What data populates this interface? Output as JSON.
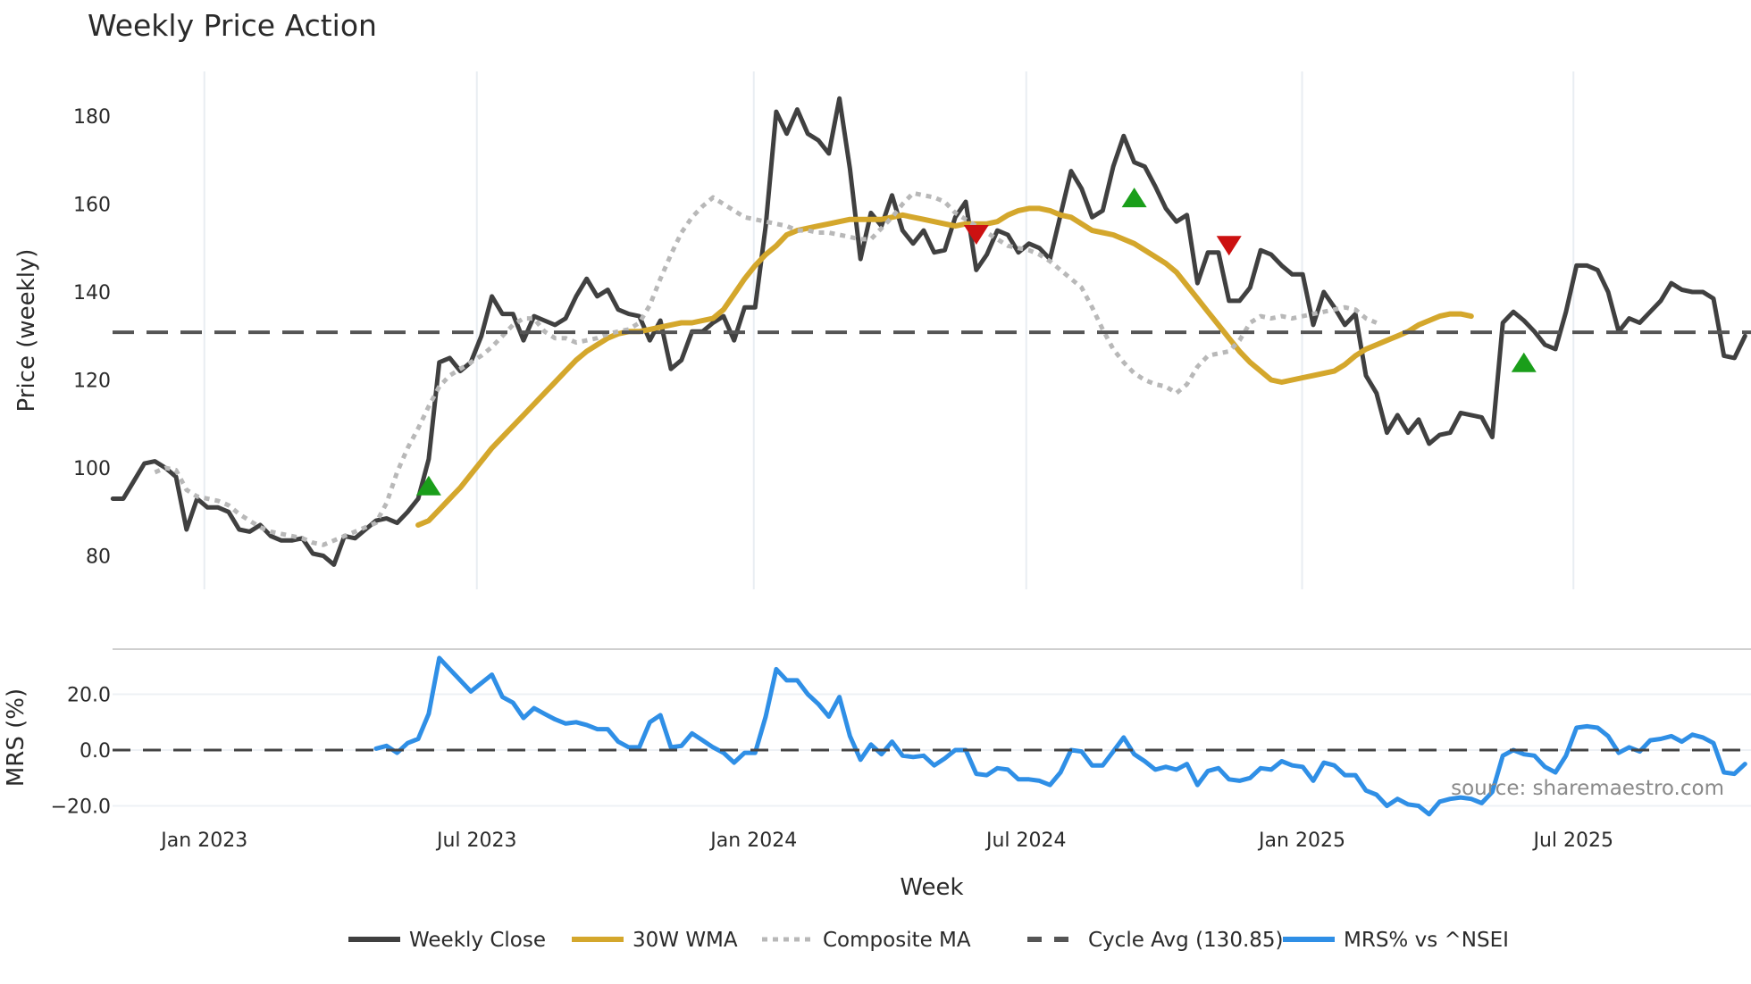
{
  "chart_data": {
    "type": "line",
    "title": "Weekly Price Action",
    "xlabel": "Week",
    "panels": [
      {
        "name": "price",
        "ylabel": "Price (weekly)",
        "yticks": [
          80,
          100,
          120,
          140,
          160,
          180
        ],
        "ylim": [
          72,
          190
        ],
        "grid": "x-only"
      },
      {
        "name": "mrs",
        "ylabel": "MRS (%)",
        "yticks": [
          "-20.0",
          "0.0",
          "20.0"
        ],
        "ylim": [
          -26,
          36
        ]
      }
    ],
    "x_ticks": [
      "Jan 2023",
      "Jul 2023",
      "Jan 2024",
      "Jul 2024",
      "Jan 2025",
      "Jul 2025"
    ],
    "x_start": "2022-11-14",
    "x_step_weeks": 1,
    "series": [
      {
        "name": "Weekly Close",
        "color": "#404040",
        "style": "solid",
        "start_index": 0,
        "values": [
          93,
          93,
          97,
          101,
          101.5,
          100,
          98,
          86,
          93,
          91,
          91,
          90,
          86,
          85.5,
          87,
          84.5,
          83.5,
          83.5,
          84,
          80.5,
          80,
          78,
          84.5,
          84,
          86,
          88,
          88.5,
          87.5,
          90,
          93,
          102,
          124,
          125,
          122,
          124,
          130,
          139,
          135,
          135,
          129,
          134.5,
          133.5,
          132.5,
          134,
          139,
          143,
          139,
          140.5,
          136,
          135,
          134.5,
          129,
          133.5,
          122.5,
          124.5,
          131,
          131,
          133,
          134.5,
          129,
          136.5,
          136.5,
          155,
          181,
          176,
          181.5,
          176,
          174.5,
          171.5,
          184,
          168,
          147.5,
          158,
          155,
          162,
          154,
          151,
          154,
          149,
          149.5,
          157,
          160.5,
          145,
          148.5,
          154,
          153,
          149,
          151,
          150,
          147.5,
          157.5,
          167.5,
          163.5,
          157,
          158.5,
          168.5,
          175.5,
          169.5,
          168.5,
          164,
          159,
          156,
          157.5,
          142,
          149,
          149,
          138,
          138,
          141,
          149.5,
          148.5,
          146,
          144,
          144,
          132.5,
          140,
          136.5,
          132.5,
          135,
          121,
          117,
          108,
          112,
          108,
          111,
          105.5,
          107.5,
          108,
          112.5,
          112,
          111.5,
          107,
          133,
          135.5,
          133.5,
          131,
          128,
          127,
          135.5,
          146,
          146,
          145,
          140,
          131,
          134,
          133,
          135.5,
          138,
          142,
          140.5,
          140,
          140,
          138.5,
          125.5,
          125,
          130
        ]
      },
      {
        "name": "30W WMA",
        "color": "#d4a72c",
        "style": "solid",
        "start_index": 29,
        "values": [
          87,
          88,
          90.5,
          93,
          95.5,
          98.5,
          101.5,
          104.5,
          107,
          109.5,
          112,
          114.5,
          117,
          119.5,
          122,
          124.5,
          126.5,
          128,
          129.5,
          130.5,
          131,
          131,
          131.5,
          132,
          132.5,
          133,
          133,
          133.5,
          134,
          136,
          139.5,
          143,
          146,
          148.5,
          150.5,
          153,
          154,
          154.5,
          155,
          155.5,
          156,
          156.5,
          156.5,
          156.5,
          156.5,
          157,
          157.5,
          157,
          156.5,
          156,
          155.5,
          155,
          155.5,
          155.5,
          155.5,
          156,
          157.5,
          158.5,
          159,
          159,
          158.5,
          157.5,
          157,
          155.5,
          154,
          153.5,
          153,
          152,
          151,
          149.5,
          148,
          146.5,
          144.5,
          141.5,
          138.5,
          135.5,
          132.5,
          129.5,
          126.5,
          124,
          122,
          120,
          119.5,
          120,
          120.5,
          121,
          121.5,
          122,
          123.5,
          125.5,
          127,
          128,
          129,
          130,
          131,
          132.5,
          133.5,
          134.5,
          135,
          135,
          134.5
        ]
      },
      {
        "name": "Composite MA",
        "color": "#b8b8b8",
        "style": "dotted",
        "start_index": 4,
        "values": [
          99,
          100,
          99.5,
          95,
          93.5,
          93,
          92.5,
          91.5,
          89.5,
          88,
          86.5,
          85.5,
          85,
          84.5,
          84,
          83,
          82.5,
          83.5,
          84.5,
          85.5,
          86.5,
          87.5,
          92,
          99,
          104.5,
          109,
          114,
          118.5,
          121,
          122.5,
          124,
          125.5,
          127.5,
          130,
          132.5,
          134,
          134,
          131,
          129.5,
          129.5,
          128.5,
          129,
          129.5,
          130.5,
          131,
          131.5,
          133,
          137,
          143,
          148.5,
          153.5,
          157,
          159.5,
          161.5,
          160,
          158.5,
          157,
          156.5,
          156,
          155.5,
          155,
          154,
          154,
          153.5,
          153.5,
          153,
          152.5,
          152,
          152,
          154.5,
          157,
          160,
          162.5,
          162,
          161.5,
          160.5,
          158,
          156.5,
          155,
          153.5,
          152,
          150.5,
          150,
          149.5,
          148.5,
          147,
          145,
          143,
          141,
          136.5,
          131.5,
          127,
          124,
          121.5,
          120,
          119,
          118.5,
          117,
          119,
          123,
          125.5,
          126,
          126.5,
          129,
          133,
          134.5,
          134,
          134.5,
          134,
          134.5,
          135,
          135.5,
          136,
          136.5,
          136,
          134,
          133
        ]
      },
      {
        "name": "Cycle Avg (130.85)",
        "color": "#555555",
        "style": "dashed",
        "constant": 130.85
      },
      {
        "name": "MRS% vs ^NSEI",
        "color": "#2f8fe6",
        "style": "solid",
        "panel": "mrs",
        "start_index": 25,
        "values": [
          0.5,
          1.5,
          -1,
          2.5,
          4,
          13,
          33,
          29,
          25,
          21,
          24,
          27,
          19,
          17,
          11.5,
          15,
          13,
          11,
          9.5,
          10,
          9,
          7.5,
          7.5,
          3,
          1,
          1,
          10,
          12.5,
          1,
          1.5,
          6,
          3.5,
          1,
          -1,
          -4.5,
          -1,
          -1,
          12,
          29,
          25,
          25,
          20,
          16.5,
          12,
          19,
          5,
          -3.5,
          2,
          -1.5,
          3,
          -2,
          -2.5,
          -2,
          -5.5,
          -3,
          0,
          0,
          -8.5,
          -9,
          -6.5,
          -7,
          -10.5,
          -10.5,
          -11,
          -12.5,
          -8,
          0,
          -0.5,
          -5.5,
          -5.5,
          -0.5,
          4.5,
          -1.5,
          -4,
          -7,
          -6,
          -7,
          -5,
          -12.5,
          -7.5,
          -6.5,
          -10.5,
          -11,
          -10,
          -6.5,
          -7,
          -4,
          -5.5,
          -6,
          -11,
          -4.5,
          -5.5,
          -9,
          -9,
          -14.5,
          -16,
          -20,
          -17.5,
          -19.5,
          -20,
          -23,
          -18.5,
          -17.5,
          -17,
          -17.5,
          -19,
          -15,
          -2,
          0,
          -1.5,
          -2,
          -6,
          -8,
          -2,
          8,
          8.5,
          8,
          5,
          -1,
          1,
          -0.5,
          3.5,
          4,
          5,
          3,
          5.5,
          4.5,
          2.5,
          -8,
          -8.5,
          -5
        ]
      },
      {
        "name": "MRS zero line",
        "color": "#444444",
        "style": "dashed",
        "panel": "mrs",
        "constant": 0
      }
    ],
    "markers": [
      {
        "type": "buy",
        "shape": "triangle-up",
        "color": "#1a9e1a",
        "index": 30,
        "value": 96
      },
      {
        "type": "sell",
        "shape": "triangle-down",
        "color": "#cc1111",
        "index": 82,
        "value": 153
      },
      {
        "type": "buy",
        "shape": "triangle-up",
        "color": "#1a9e1a",
        "index": 97,
        "value": 161.5
      },
      {
        "type": "sell",
        "shape": "triangle-down",
        "color": "#cc1111",
        "index": 106,
        "value": 150.5
      },
      {
        "type": "buy",
        "shape": "triangle-up",
        "color": "#1a9e1a",
        "index": 134,
        "value": 124
      }
    ],
    "legend": {
      "position": "bottom-center",
      "entries": [
        "Weekly Close",
        "30W WMA",
        "Composite MA",
        "Cycle Avg (130.85)",
        "MRS% vs ^NSEI"
      ]
    },
    "annotations": [
      "source: sharemaestro.com"
    ]
  },
  "labels": {
    "title": "Weekly Price Action",
    "price_ylabel": "Price (weekly)",
    "mrs_ylabel": "MRS (%)",
    "xlabel": "Week",
    "source": "source: sharemaestro.com"
  }
}
